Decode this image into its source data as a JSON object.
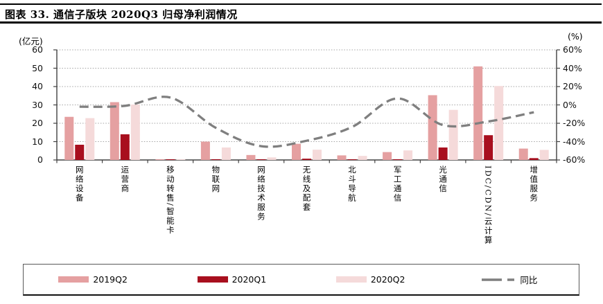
{
  "header": {
    "title": "图表 33. 通信子版块 2020Q3 归母净利润情况"
  },
  "chart": {
    "left_axis_unit": "(亿元)",
    "right_axis_unit": "(%)"
  },
  "chart_data": {
    "type": "bar",
    "title": "通信子版块 2020Q3 归母净利润情况",
    "categories": [
      "网络设备",
      "运营商",
      "移动转售/智能卡",
      "物联网",
      "网络技术服务",
      "无线及配套",
      "北斗导航",
      "军工通信",
      "光通信",
      "IDC/CDN/云计算",
      "增值服务"
    ],
    "series": [
      {
        "name": "2019Q2",
        "type": "bar",
        "axis": "left",
        "color": "#E5A0A1",
        "values": [
          23.5,
          31.5,
          0.4,
          10,
          2.7,
          8.8,
          2.5,
          4.3,
          35.3,
          51,
          6.2
        ]
      },
      {
        "name": "2020Q1",
        "type": "bar",
        "axis": "left",
        "color": "#A80F1E",
        "values": [
          8.3,
          14,
          0.15,
          0.4,
          0.15,
          0.7,
          0.15,
          0.2,
          6.8,
          13.5,
          1
        ]
      },
      {
        "name": "2020Q2",
        "type": "bar",
        "axis": "left",
        "color": "#F5DADA",
        "values": [
          22.8,
          30.2,
          0.3,
          6.8,
          1.4,
          5.6,
          2.2,
          5.2,
          27.3,
          40.3,
          5.5
        ]
      },
      {
        "name": "同比",
        "type": "line",
        "axis": "right",
        "color": "#7F7F7F",
        "dashed": true,
        "values": [
          -2,
          -1,
          8,
          -25,
          -45,
          -39,
          -24,
          7,
          -22,
          -18,
          -8
        ]
      }
    ],
    "left_axis": {
      "unit": "(亿元)",
      "min": 0,
      "max": 60,
      "step": 10,
      "ticks": [
        "60",
        "50",
        "40",
        "30",
        "20",
        "10",
        "0"
      ]
    },
    "right_axis": {
      "unit": "(%)",
      "min": -60,
      "max": 60,
      "step": 20,
      "ticks": [
        "60%",
        "40%",
        "20%",
        "0%",
        "-20%",
        "-40%",
        "-60%"
      ]
    },
    "legend_position": "bottom",
    "grid": "dotted-horizontal"
  },
  "legend": {
    "items": [
      {
        "label": "2019Q2",
        "swatch": "bar",
        "color": "#E5A0A1"
      },
      {
        "label": "2020Q1",
        "swatch": "bar",
        "color": "#A80F1E"
      },
      {
        "label": "2020Q2",
        "swatch": "bar",
        "color": "#F5DADA"
      },
      {
        "label": "同比",
        "swatch": "dashed-line",
        "color": "#7F7F7F"
      }
    ]
  }
}
